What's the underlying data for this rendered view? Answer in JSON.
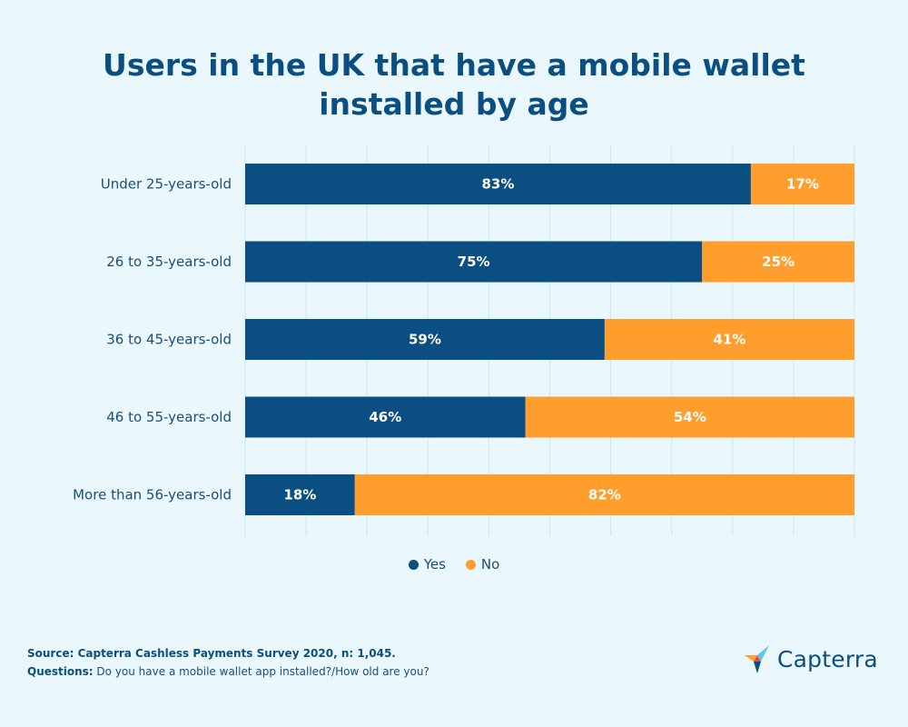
{
  "chart_data": {
    "type": "bar",
    "orientation": "horizontal",
    "stacked": true,
    "title": "Users in the UK that have a mobile wallet installed by age",
    "categories": [
      "Under 25-years-old",
      "26 to 35-years-old",
      "36 to 45-years-old",
      "46 to 55-years-old",
      "More than 56-years-old"
    ],
    "series": [
      {
        "name": "Yes",
        "color": "#0b4f82",
        "values": [
          83,
          75,
          59,
          46,
          18
        ],
        "labels": [
          "83%",
          "75%",
          "59%",
          "46%",
          "18%"
        ]
      },
      {
        "name": "No",
        "color": "#ff9e2c",
        "values": [
          17,
          25,
          41,
          54,
          82
        ],
        "labels": [
          "17%",
          "25%",
          "41%",
          "54%",
          "82%"
        ]
      }
    ],
    "xlim": [
      0,
      100
    ],
    "grid": true,
    "legend_position": "bottom-center"
  },
  "legend": {
    "yes": "Yes",
    "no": "No"
  },
  "footer": {
    "source": "Source: Capterra Cashless Payments Survey 2020, n: 1,045.",
    "questions_label": "Questions:",
    "questions_text": " Do you have a mobile wallet app installed?/How old are you?"
  },
  "logo": {
    "text": "Capterra",
    "icon": "capterra-arrow-icon"
  },
  "colors": {
    "background": "#eaf7fc",
    "yes": "#0b4f82",
    "no": "#ff9e2c",
    "grid": "#cde8f3",
    "label": "#1a4f78"
  }
}
